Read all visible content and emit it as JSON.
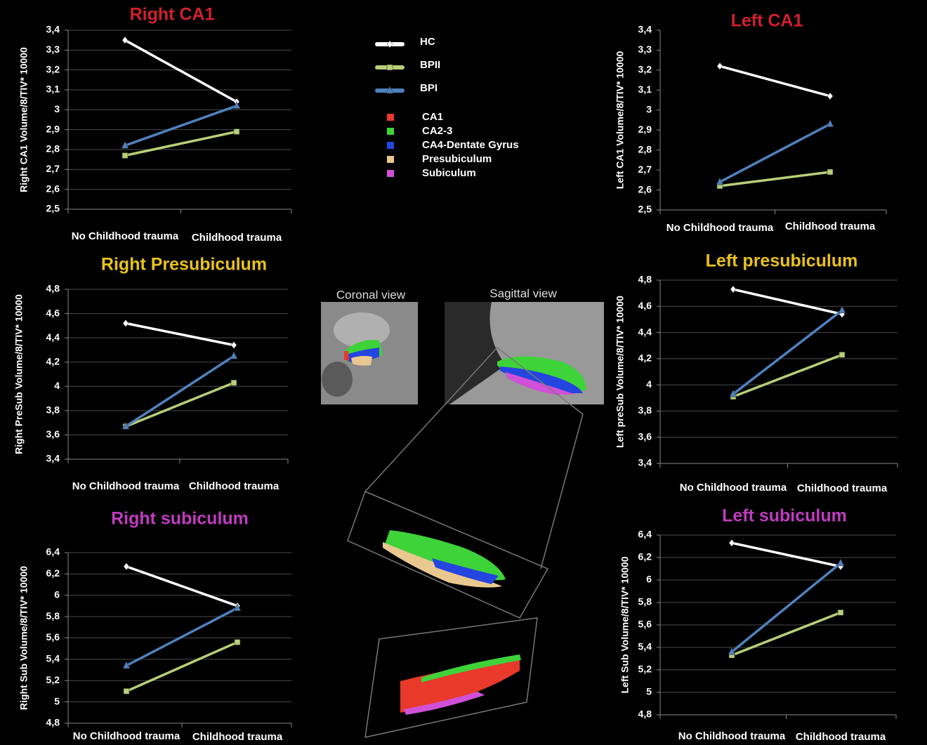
{
  "chart_data": [
    {
      "type": "line",
      "title": "Right CA1",
      "title_color": "#d0202e",
      "y_label": "Right CA1 Volume/8/TIV* 10000",
      "categories": [
        "No Childhood trauma",
        "Childhood trauma"
      ],
      "series": [
        {
          "name": "HC",
          "color": "#ffffff",
          "marker": "diamond",
          "values": [
            3.35,
            3.04
          ]
        },
        {
          "name": "BPII",
          "color": "#b8cf78",
          "marker": "square",
          "values": [
            2.77,
            2.89
          ]
        },
        {
          "name": "BPI",
          "color": "#4f81bd",
          "marker": "triangle",
          "values": [
            2.82,
            3.02
          ]
        }
      ],
      "ylim": [
        2.5,
        3.4
      ],
      "yticks": [
        {
          "value": 2.5,
          "label": "2,5"
        },
        {
          "value": 2.6,
          "label": "2,6"
        },
        {
          "value": 2.7,
          "label": "2,7"
        },
        {
          "value": 2.8,
          "label": "2,8"
        },
        {
          "value": 2.9,
          "label": "2,9"
        },
        3,
        {
          "value": 3.1,
          "label": "3,1"
        },
        {
          "value": 3.2,
          "label": "3,2"
        },
        {
          "value": 3.3,
          "label": "3,3"
        },
        {
          "value": 3.4,
          "label": "3,4"
        }
      ],
      "grid": true
    },
    {
      "type": "line",
      "title": "Left CA1",
      "title_color": "#d0202e",
      "y_label": "Left CA1 Volume/8/TIV* 10000",
      "categories": [
        "No Childhood trauma",
        "Childhood trauma"
      ],
      "series": [
        {
          "name": "HC",
          "color": "#ffffff",
          "marker": "diamond",
          "values": [
            3.22,
            3.07
          ]
        },
        {
          "name": "BPII",
          "color": "#b8cf78",
          "marker": "square",
          "values": [
            2.62,
            2.69
          ]
        },
        {
          "name": "BPI",
          "color": "#4f81bd",
          "marker": "triangle",
          "values": [
            2.64,
            2.93
          ]
        }
      ],
      "ylim": [
        2.5,
        3.4
      ],
      "yticks": [
        {
          "value": 2.5,
          "label": "2,5"
        },
        {
          "value": 2.6,
          "label": "2,6"
        },
        {
          "value": 2.7,
          "label": "2,7"
        },
        {
          "value": 2.8,
          "label": "2,8"
        },
        {
          "value": 2.9,
          "label": "2,9"
        },
        3,
        {
          "value": 3.1,
          "label": "3,1"
        },
        {
          "value": 3.2,
          "label": "3,2"
        },
        {
          "value": 3.3,
          "label": "3,3"
        },
        {
          "value": 3.4,
          "label": "3,4"
        }
      ],
      "grid": false
    },
    {
      "type": "line",
      "title": "Right Presubiculum",
      "title_color": "#e8c21a",
      "y_label": "Right PreSub Volume/8/TIV* 10000",
      "categories": [
        "No Childhood trauma",
        "Childhood trauma"
      ],
      "series": [
        {
          "name": "HC",
          "color": "#ffffff",
          "marker": "diamond",
          "values": [
            4.52,
            4.34
          ]
        },
        {
          "name": "BPII",
          "color": "#b8cf78",
          "marker": "square",
          "values": [
            3.67,
            4.03
          ]
        },
        {
          "name": "BPI",
          "color": "#4f81bd",
          "marker": "triangle",
          "values": [
            3.67,
            4.25
          ]
        }
      ],
      "ylim": [
        3.4,
        4.8
      ],
      "yticks": [
        {
          "value": 3.4,
          "label": "3,4"
        },
        {
          "value": 3.6,
          "label": "3,6"
        },
        {
          "value": 3.8,
          "label": "3,8"
        },
        4,
        {
          "value": 4.2,
          "label": "4,2"
        },
        {
          "value": 4.4,
          "label": "4,4"
        },
        {
          "value": 4.6,
          "label": "4,6"
        },
        {
          "value": 4.8,
          "label": "4,8"
        }
      ],
      "grid": true
    },
    {
      "type": "line",
      "title": "Left presubiculum",
      "title_color": "#e8c21a",
      "y_label": "Left preSub Volume/8/TIV* 10000",
      "categories": [
        "No Childhood trauma",
        "Childhood trauma"
      ],
      "series": [
        {
          "name": "HC",
          "color": "#ffffff",
          "marker": "diamond",
          "values": [
            4.73,
            4.54
          ]
        },
        {
          "name": "BPII",
          "color": "#b8cf78",
          "marker": "square",
          "values": [
            3.91,
            4.23
          ]
        },
        {
          "name": "BPI",
          "color": "#4f81bd",
          "marker": "triangle",
          "values": [
            3.93,
            4.57
          ]
        }
      ],
      "ylim": [
        3.4,
        4.8
      ],
      "yticks": [
        {
          "value": 3.4,
          "label": "3,4"
        },
        {
          "value": 3.6,
          "label": "3,6"
        },
        {
          "value": 3.8,
          "label": "3,8"
        },
        4,
        {
          "value": 4.2,
          "label": "4,2"
        },
        {
          "value": 4.4,
          "label": "4,4"
        },
        {
          "value": 4.6,
          "label": "4,6"
        },
        {
          "value": 4.8,
          "label": "4,8"
        }
      ],
      "grid": true
    },
    {
      "type": "line",
      "title": "Right subiculum",
      "title_color": "#c03bbf",
      "y_label": "Right Sub Volume/8/TIV* 10000",
      "categories": [
        "No Childhood trauma",
        "Childhood trauma"
      ],
      "series": [
        {
          "name": "HC",
          "color": "#ffffff",
          "marker": "diamond",
          "values": [
            6.27,
            5.9
          ]
        },
        {
          "name": "BPII",
          "color": "#b8cf78",
          "marker": "square",
          "values": [
            5.1,
            5.56
          ]
        },
        {
          "name": "BPI",
          "color": "#4f81bd",
          "marker": "triangle",
          "values": [
            5.34,
            5.88
          ]
        }
      ],
      "ylim": [
        4.8,
        6.4
      ],
      "yticks": [
        {
          "value": 4.8,
          "label": "4,8"
        },
        5,
        {
          "value": 5.2,
          "label": "5,2"
        },
        {
          "value": 5.4,
          "label": "5,4"
        },
        {
          "value": 5.6,
          "label": "5,6"
        },
        {
          "value": 5.8,
          "label": "5,8"
        },
        6,
        {
          "value": 6.2,
          "label": "6,2"
        },
        {
          "value": 6.4,
          "label": "6,4"
        }
      ],
      "grid": true
    },
    {
      "type": "line",
      "title": "Left subiculum",
      "title_color": "#c03bbf",
      "y_label": "Left Sub Volume/8/TIV* 10000",
      "categories": [
        "No Childhood trauma",
        "Childhood trauma"
      ],
      "series": [
        {
          "name": "HC",
          "color": "#ffffff",
          "marker": "diamond",
          "values": [
            6.33,
            6.12
          ]
        },
        {
          "name": "BPII",
          "color": "#b8cf78",
          "marker": "square",
          "values": [
            5.33,
            5.71
          ]
        },
        {
          "name": "BPI",
          "color": "#4f81bd",
          "marker": "triangle",
          "values": [
            5.36,
            6.15
          ]
        }
      ],
      "ylim": [
        4.8,
        6.4
      ],
      "yticks": [
        {
          "value": 4.8,
          "label": "4,8"
        },
        5,
        {
          "value": 5.2,
          "label": "5,2"
        },
        {
          "value": 5.4,
          "label": "5,4"
        },
        {
          "value": 5.6,
          "label": "5,6"
        },
        {
          "value": 5.8,
          "label": "5,8"
        },
        6,
        {
          "value": 6.2,
          "label": "6,2"
        },
        {
          "value": 6.4,
          "label": "6,4"
        }
      ],
      "grid": true
    }
  ],
  "subfield_legend": [
    {
      "name": "CA1",
      "color": "#e8392b"
    },
    {
      "name": "CA2-3",
      "color": "#3fd33a"
    },
    {
      "name": "CA4-Dentate Gyrus",
      "color": "#2445e0"
    },
    {
      "name": "Presubiculum",
      "color": "#e9c890"
    },
    {
      "name": "Subiculum",
      "color": "#d050d8"
    }
  ],
  "images": {
    "coronal": "Coronal view",
    "sagittal": "Sagittal view"
  }
}
